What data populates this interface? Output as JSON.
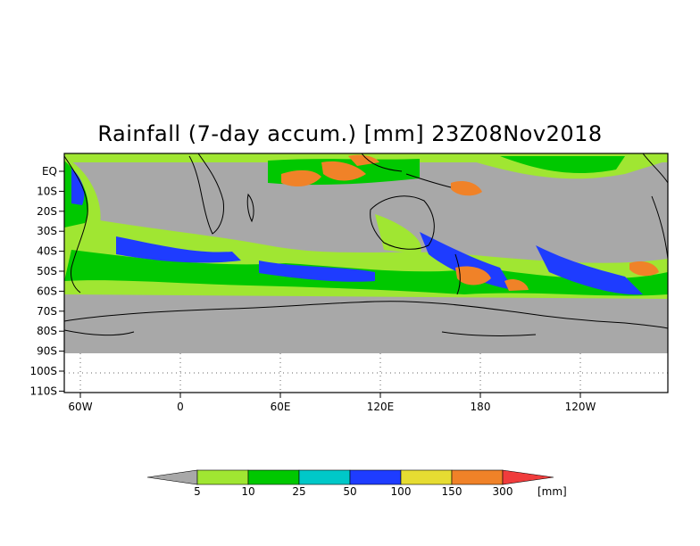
{
  "title": "Rainfall (7-day accum.) [mm] 23Z08Nov2018",
  "lat_labels": [
    "EQ",
    "10S",
    "20S",
    "30S",
    "40S",
    "50S",
    "60S",
    "70S",
    "80S",
    "90S",
    "100S",
    "110S"
  ],
  "lon_labels": [
    "60W",
    "0",
    "60E",
    "120E",
    "180",
    "120W"
  ],
  "colorbar": {
    "colors": {
      "under": "#a8a8a8",
      "c1": "#a0e632",
      "c2": "#00c800",
      "c3": "#00c8c8",
      "c4": "#1e3cff",
      "c5": "#e6dc32",
      "c6": "#f08228",
      "over": "#f03c3c"
    },
    "tick_labels": [
      "5",
      "10",
      "25",
      "50",
      "100",
      "150",
      "300"
    ],
    "unit": "[mm]"
  },
  "map_colors": {
    "no_data": "#a8a8a8",
    "light": "#a0e632",
    "moderate": "#00c800",
    "heavy": "#1e3cff",
    "very_heavy": "#f08228",
    "coast": "#000000",
    "background": "#ffffff"
  }
}
